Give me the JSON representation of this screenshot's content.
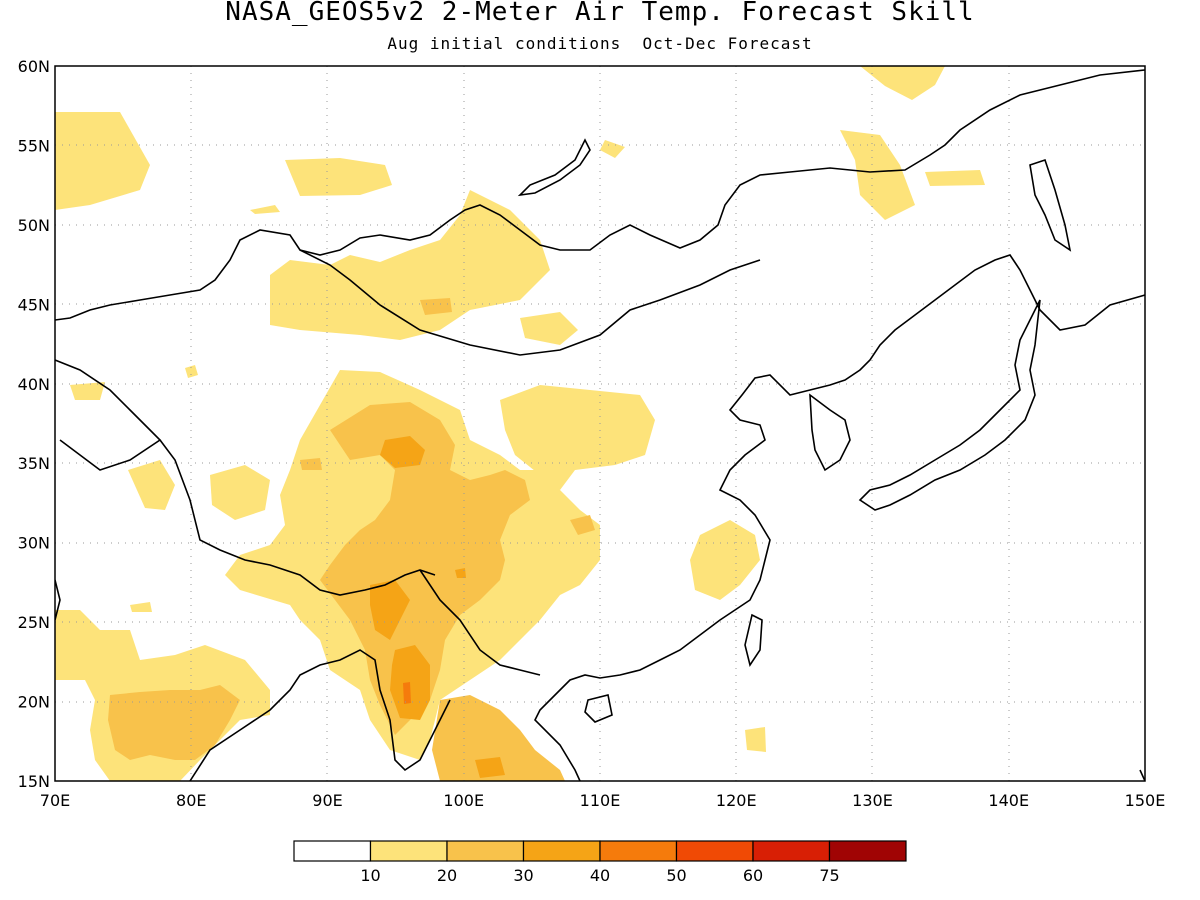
{
  "title": "NASA_GEOS5v2 2-Meter Air Temp. Forecast Skill",
  "subtitle": "Aug initial conditions  Oct-Dec Forecast",
  "map": {
    "lon_range": [
      70,
      150
    ],
    "lat_range": [
      15,
      60
    ],
    "lon_ticks": [
      "70E",
      "80E",
      "90E",
      "100E",
      "110E",
      "120E",
      "130E",
      "140E",
      "150E"
    ],
    "lat_ticks": [
      "15N",
      "20N",
      "25N",
      "30N",
      "35N",
      "40N",
      "45N",
      "50N",
      "55N",
      "60N"
    ],
    "grid": "dotted"
  },
  "colorbar": {
    "labels": [
      "10",
      "20",
      "30",
      "40",
      "50",
      "60",
      "75"
    ],
    "colors": [
      "#ffffff",
      "#fde37a",
      "#f8c24b",
      "#f5a416",
      "#f57b0c",
      "#f04a05",
      "#d81f05",
      "#a00404"
    ]
  }
}
